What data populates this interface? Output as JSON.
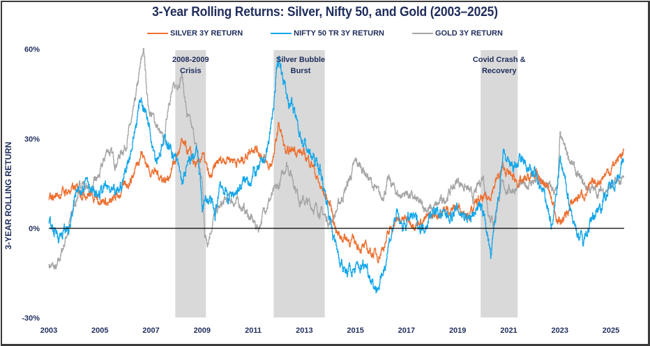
{
  "chart_data": {
    "type": "line",
    "title": "3-Year Rolling Returns: Silver, Nifty 50, and Gold (2003–2025)",
    "xlabel": "",
    "ylabel": "3-YEAR ROLLING RETURN",
    "ylim": [
      -30,
      60
    ],
    "xlim": [
      2003,
      2025.6
    ],
    "grid": false,
    "legend_position": "top-center",
    "y_ticks": [
      "60%",
      "30%",
      "0%",
      "-30%"
    ],
    "y_tick_values": [
      60,
      30,
      0,
      -30
    ],
    "x_ticks": [
      "2003",
      "2005",
      "2007",
      "2009",
      "2011",
      "2013",
      "2015",
      "2017",
      "2019",
      "2021",
      "2023",
      "2025"
    ],
    "x_tick_values": [
      2003,
      2005,
      2007,
      2009,
      2011,
      2013,
      2015,
      2017,
      2019,
      2021,
      2023,
      2025
    ],
    "zero_line": 0,
    "shaded_regions": [
      {
        "label_lines": [
          "2008-2009",
          "Crisis"
        ],
        "start": 2007.95,
        "end": 2009.15
      },
      {
        "label_lines": [
          "Silver Bubble",
          "Burst"
        ],
        "start": 2011.8,
        "end": 2013.8
      },
      {
        "label_lines": [
          "Covid Crash &",
          "Recovery"
        ],
        "start": 2019.9,
        "end": 2021.35
      }
    ],
    "series": [
      {
        "name": "SILVER 3Y RETURN",
        "color": "#ed7031",
        "x": [
          2003.0,
          2003.5,
          2004.0,
          2004.5,
          2005.0,
          2005.4,
          2005.8,
          2006.3,
          2006.6,
          2006.9,
          2007.3,
          2007.6,
          2007.9,
          2008.2,
          2008.5,
          2008.8,
          2009.0,
          2009.3,
          2009.6,
          2010.0,
          2010.5,
          2011.0,
          2011.3,
          2011.6,
          2011.8,
          2012.0,
          2012.3,
          2012.6,
          2012.9,
          2013.3,
          2013.6,
          2014.0,
          2014.3,
          2014.8,
          2015.2,
          2015.6,
          2015.9,
          2016.2,
          2016.5,
          2016.8,
          2017.5,
          2018.0,
          2018.5,
          2019.0,
          2019.5,
          2019.8,
          2020.2,
          2020.5,
          2020.8,
          2021.0,
          2021.5,
          2022.0,
          2022.5,
          2022.8,
          2023.0,
          2023.2,
          2023.6,
          2024.0,
          2024.5,
          2025.0,
          2025.5
        ],
        "values": [
          10,
          12,
          13,
          12,
          10,
          8,
          12,
          18,
          26,
          20,
          18,
          16,
          22,
          28,
          25,
          20,
          25,
          16,
          22,
          24,
          22,
          28,
          25,
          20,
          24,
          35,
          24,
          27,
          25,
          22,
          14,
          8,
          -2,
          -4,
          -6,
          -8,
          -9,
          -4,
          2,
          3,
          2,
          4,
          6,
          7,
          5,
          9,
          10,
          16,
          20,
          18,
          15,
          18,
          14,
          6,
          2,
          4,
          10,
          12,
          16,
          20,
          26
        ]
      },
      {
        "name": "NIFTY 50 TR 3Y RETURN",
        "color": "#13a6ea",
        "x": [
          2003.0,
          2003.4,
          2003.8,
          2004.1,
          2004.5,
          2004.8,
          2005.2,
          2005.6,
          2005.9,
          2006.3,
          2006.6,
          2006.9,
          2007.2,
          2007.6,
          2008.0,
          2008.2,
          2008.5,
          2008.8,
          2009.0,
          2009.3,
          2009.5,
          2009.7,
          2010.0,
          2010.5,
          2011.0,
          2011.3,
          2011.6,
          2011.8,
          2012.0,
          2012.3,
          2012.6,
          2012.9,
          2013.2,
          2013.6,
          2013.9,
          2014.2,
          2014.6,
          2015.0,
          2015.4,
          2015.8,
          2016.0,
          2016.3,
          2016.6,
          2016.8,
          2017.2,
          2017.6,
          2018.0,
          2018.5,
          2019.0,
          2019.5,
          2019.8,
          2020.1,
          2020.3,
          2020.6,
          2020.8,
          2021.0,
          2021.5,
          2022.0,
          2022.5,
          2022.7,
          2023.0,
          2023.3,
          2023.6,
          2023.9,
          2024.3,
          2024.7,
          2025.0,
          2025.5
        ],
        "values": [
          1,
          -2,
          0,
          12,
          18,
          10,
          14,
          10,
          16,
          30,
          44,
          36,
          24,
          30,
          22,
          15,
          22,
          26,
          8,
          10,
          3,
          16,
          10,
          14,
          18,
          20,
          28,
          42,
          58,
          45,
          38,
          30,
          25,
          20,
          8,
          -5,
          -15,
          -14,
          -12,
          -20,
          -18,
          -5,
          5,
          0,
          4,
          0,
          6,
          4,
          6,
          3,
          8,
          2,
          -10,
          12,
          24,
          20,
          22,
          18,
          8,
          0,
          22,
          12,
          0,
          -4,
          4,
          10,
          14,
          22
        ]
      },
      {
        "name": "GOLD 3Y RETURN",
        "color": "#a5a5a5",
        "x": [
          2003.0,
          2003.3,
          2003.6,
          2004.0,
          2004.3,
          2004.6,
          2005.0,
          2005.3,
          2005.6,
          2006.0,
          2006.3,
          2006.6,
          2006.7,
          2006.9,
          2007.2,
          2007.5,
          2007.7,
          2008.0,
          2008.2,
          2008.4,
          2008.7,
          2009.0,
          2009.1,
          2009.2,
          2009.5,
          2010.0,
          2010.5,
          2011.0,
          2011.2,
          2011.5,
          2012.0,
          2012.3,
          2012.5,
          2012.8,
          2013.2,
          2013.6,
          2014.0,
          2014.2,
          2014.7,
          2015.0,
          2015.3,
          2015.7,
          2016.0,
          2016.3,
          2016.7,
          2017.0,
          2017.5,
          2018.0,
          2018.5,
          2019.0,
          2019.3,
          2019.6,
          2020.0,
          2020.2,
          2020.4,
          2020.7,
          2021.0,
          2021.5,
          2022.0,
          2022.5,
          2022.9,
          2023.0,
          2023.3,
          2023.7,
          2024.0,
          2024.5,
          2025.0,
          2025.5
        ],
        "values": [
          -12,
          -14,
          -5,
          8,
          16,
          12,
          18,
          27,
          22,
          28,
          38,
          55,
          60,
          40,
          35,
          28,
          44,
          48,
          52,
          38,
          30,
          15,
          -2,
          -4,
          5,
          10,
          8,
          2,
          0,
          8,
          14,
          22,
          18,
          10,
          8,
          6,
          2,
          5,
          15,
          22,
          20,
          14,
          10,
          16,
          11,
          12,
          8,
          6,
          10,
          16,
          14,
          10,
          18,
          6,
          2,
          14,
          13,
          14,
          16,
          14,
          12,
          30,
          25,
          17,
          14,
          12,
          14,
          16
        ]
      }
    ]
  }
}
